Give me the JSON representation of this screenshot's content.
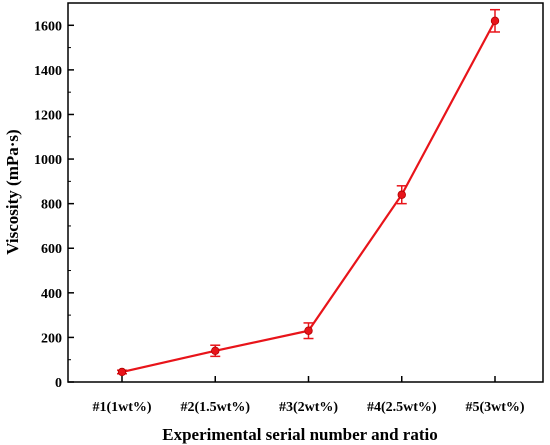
{
  "chart_data": {
    "type": "line",
    "title": "",
    "xlabel": "Experimental serial number and ratio",
    "ylabel": "Viscosity (mPa·s)",
    "categories": [
      "#1(1wt%)",
      "#2(1.5wt%)",
      "#3(2wt%)",
      "#4(2.5wt%)",
      "#5(3wt%)"
    ],
    "ylim": [
      0,
      1700
    ],
    "yticks": [
      0,
      200,
      400,
      600,
      800,
      1000,
      1200,
      1400,
      1600
    ],
    "grid": false,
    "series": [
      {
        "values": [
          45,
          140,
          230,
          840,
          1620
        ],
        "error": [
          8,
          25,
          35,
          40,
          50
        ],
        "color": "#e8141a",
        "marker": "circle"
      }
    ]
  }
}
